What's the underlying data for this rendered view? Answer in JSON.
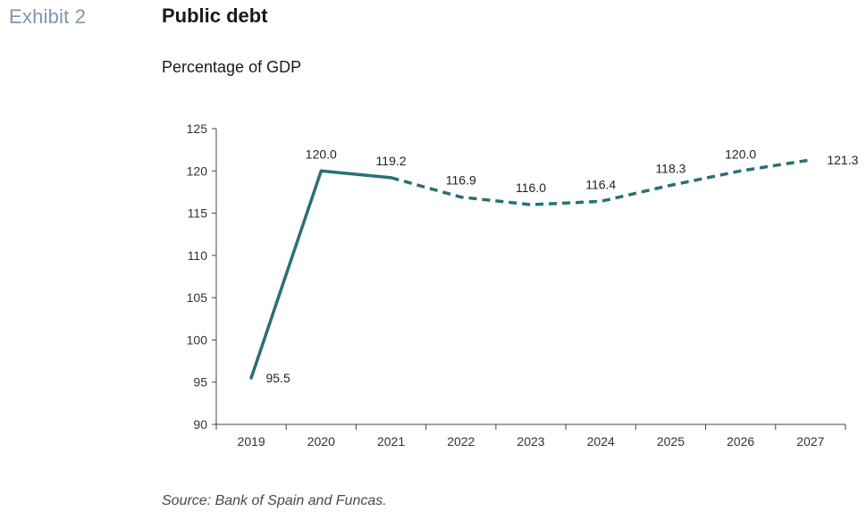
{
  "header": {
    "exhibit": "Exhibit 2",
    "title": "Public debt",
    "subtitle": "Percentage of GDP"
  },
  "footer": {
    "source": "Source: Bank of Spain and Funcas."
  },
  "colors": {
    "line": "#2a7074",
    "axis": "#444444"
  },
  "chart_data": {
    "type": "line",
    "title": "Public debt",
    "subtitle": "Percentage of GDP",
    "xlabel": "",
    "ylabel": "",
    "categories": [
      "2019",
      "2020",
      "2021",
      "2022",
      "2023",
      "2024",
      "2025",
      "2026",
      "2027"
    ],
    "series": [
      {
        "values": [
          95.5,
          120.0,
          119.2,
          116.9,
          116.0,
          116.4,
          118.3,
          120.0,
          121.3
        ],
        "labels": [
          "95.5",
          "120.0",
          "119.2",
          "116.9",
          "116.0",
          "116.4",
          "118.3",
          "120.0",
          "121.3"
        ],
        "style_solid_until_index": 2,
        "style_after": "dashed"
      }
    ],
    "ylim": [
      90,
      125
    ],
    "yticks": [
      "90",
      "95",
      "100",
      "105",
      "110",
      "115",
      "120",
      "125"
    ],
    "grid": false,
    "legend": "none"
  }
}
